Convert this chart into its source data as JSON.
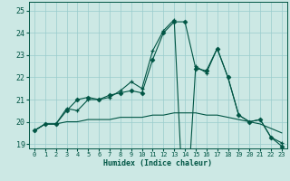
{
  "xlabel": "Humidex (Indice chaleur)",
  "bg_color": "#cce8e4",
  "grid_color": "#99cccc",
  "line_color": "#005544",
  "ylim": [
    18.8,
    25.4
  ],
  "xlim": [
    -0.5,
    23.5
  ],
  "yticks": [
    19,
    20,
    21,
    22,
    23,
    24,
    25
  ],
  "xticks": [
    0,
    1,
    2,
    3,
    4,
    5,
    6,
    7,
    8,
    9,
    10,
    11,
    12,
    13,
    14,
    15,
    16,
    17,
    18,
    19,
    20,
    21,
    22,
    23
  ],
  "series_plus": [
    19.6,
    19.9,
    19.9,
    20.6,
    20.5,
    21.0,
    21.0,
    21.1,
    21.4,
    21.8,
    21.5,
    23.2,
    24.1,
    24.6,
    14.6,
    22.5,
    22.2,
    23.3,
    22.0,
    20.3,
    20.0,
    20.1,
    19.3,
    19.05
  ],
  "series_diamond": [
    19.6,
    19.9,
    19.9,
    20.5,
    21.0,
    21.1,
    21.0,
    21.2,
    21.3,
    21.4,
    21.3,
    22.8,
    24.0,
    24.5,
    24.5,
    22.4,
    22.3,
    23.3,
    22.0,
    20.3,
    20.0,
    20.1,
    19.3,
    18.9
  ],
  "series_flat": [
    19.6,
    19.9,
    19.9,
    20.0,
    20.0,
    20.1,
    20.1,
    20.1,
    20.2,
    20.2,
    20.2,
    20.3,
    20.3,
    20.4,
    20.4,
    20.4,
    20.3,
    20.3,
    20.2,
    20.1,
    20.0,
    19.9,
    19.7,
    19.5
  ]
}
